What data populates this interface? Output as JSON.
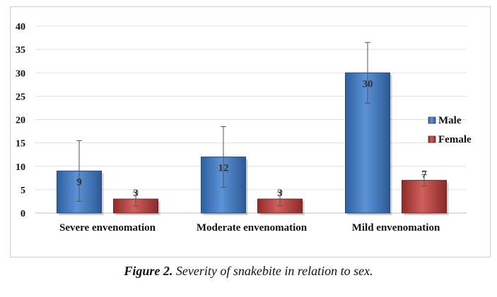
{
  "caption": {
    "prefix": "Figure 2.",
    "text": "Severity of snakebite in relation to sex."
  },
  "chart_data": {
    "type": "bar",
    "title": "",
    "xlabel": "",
    "ylabel": "",
    "ylim": [
      0,
      40
    ],
    "yticks": [
      0,
      5,
      10,
      15,
      20,
      25,
      30,
      35,
      40
    ],
    "grid": true,
    "legend_position": "right",
    "categories": [
      "Severe  envenomation",
      "Moderate envenomation",
      "Mild envenomation"
    ],
    "series": [
      {
        "name": "Male",
        "color": "#4a7fc4",
        "values": [
          9,
          12,
          30
        ],
        "error_low": [
          2.5,
          5.5,
          23.5
        ],
        "error_high": [
          15.5,
          18.5,
          36.5
        ]
      },
      {
        "name": "Female",
        "color": "#c0504d",
        "values": [
          3,
          3,
          7
        ],
        "error_low": [
          1.5,
          1.5,
          5.8
        ],
        "error_high": [
          4.5,
          4.5,
          8.2
        ]
      }
    ]
  }
}
